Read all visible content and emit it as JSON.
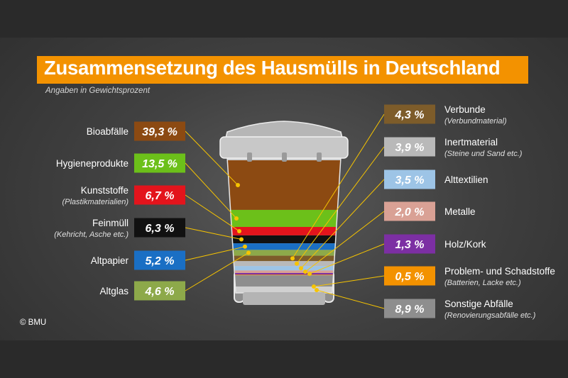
{
  "header": {
    "title": "Zusammensetzung des Hausmülls in Deutschland",
    "subtitle": "Angaben in Gewichtsprozent"
  },
  "footer": {
    "credit": "© BMU"
  },
  "colors": {
    "title_bar": "#f39200",
    "bin_lid": "#c8c8c8",
    "bin_body": "#d0d0d0",
    "leader_line": "#f7c400"
  },
  "chart_data": {
    "type": "bar",
    "title": "Zusammensetzung des Hausmülls in Deutschland",
    "subtitle": "Angaben in Gewichtsprozent",
    "unit": "%",
    "categories": [
      {
        "name": "Bioabfälle",
        "note": "",
        "value": 39.3,
        "label": "39,3 %",
        "color": "#8c4a12",
        "side": "left"
      },
      {
        "name": "Hygieneprodukte",
        "note": "",
        "value": 13.5,
        "label": "13,5 %",
        "color": "#6cc01a",
        "side": "left"
      },
      {
        "name": "Kunststoffe",
        "note": "(Plastikmaterialien)",
        "value": 6.7,
        "label": "6,7 %",
        "color": "#e3141c",
        "side": "left"
      },
      {
        "name": "Feinmüll",
        "note": "(Kehricht, Asche etc.)",
        "value": 6.3,
        "label": "6,3 %",
        "color": "#111111",
        "side": "left"
      },
      {
        "name": "Altpapier",
        "note": "",
        "value": 5.2,
        "label": "5,2 %",
        "color": "#1a6fc4",
        "side": "left"
      },
      {
        "name": "Altglas",
        "note": "",
        "value": 4.6,
        "label": "4,6 %",
        "color": "#8da94a",
        "side": "left"
      },
      {
        "name": "Verbunde",
        "note": "(Verbundmaterial)",
        "value": 4.3,
        "label": "4,3 %",
        "color": "#7d5c2a",
        "side": "right"
      },
      {
        "name": "Inertmaterial",
        "note": "(Steine und Sand etc.)",
        "value": 3.9,
        "label": "3,9 %",
        "color": "#b9b9b9",
        "side": "right"
      },
      {
        "name": "Alttextilien",
        "note": "",
        "value": 3.5,
        "label": "3,5 %",
        "color": "#9dc4e6",
        "side": "right"
      },
      {
        "name": "Metalle",
        "note": "",
        "value": 2.0,
        "label": "2,0 %",
        "color": "#d9a195",
        "side": "right"
      },
      {
        "name": "Holz/Kork",
        "note": "",
        "value": 1.3,
        "label": "1,3 %",
        "color": "#7c2fa3",
        "side": "right"
      },
      {
        "name": "Problem- und Schadstoffe",
        "note": "(Batterien, Lacke etc.)",
        "value": 0.5,
        "label": "0,5 %",
        "color": "#f39200",
        "side": "right"
      },
      {
        "name": "Sonstige Abfälle",
        "note": "(Renovierungsabfälle etc.)",
        "value": 8.9,
        "label": "8,9 %",
        "color": "#8e8e8e",
        "side": "right"
      }
    ]
  }
}
